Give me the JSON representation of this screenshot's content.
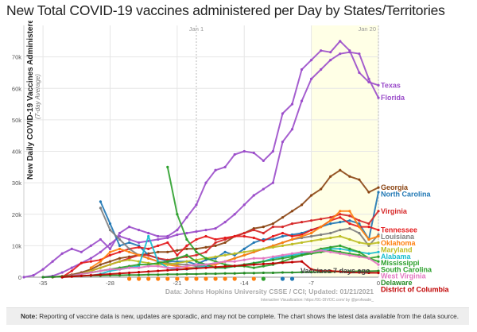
{
  "title": "New Total COVID-19 vaccines administered per Day by States/Territories",
  "note_label": "Note:",
  "note_text": "Reporting of vaccine data is new, updates are sporadic, and may not be complete. The chart shows the latest data available from the data source.",
  "chart_data": {
    "type": "line",
    "ylabel": "New Daily COVID-19 Vaccines Administered",
    "ylabel_sub": "(7-day Average)",
    "xlabel": "",
    "xlim": [
      -37,
      0
    ],
    "ylim": [
      0,
      80000
    ],
    "x_ticks": [
      "-35",
      "-28",
      "-21",
      "-14",
      "-7",
      "0"
    ],
    "y_ticks": [
      "0",
      "10k",
      "20k",
      "30k",
      "40k",
      "50k",
      "60k",
      "70k"
    ],
    "markers": [
      {
        "label": "Jan 1",
        "x": -19
      },
      {
        "label": "Jan 20",
        "x": 0
      }
    ],
    "source": "Data: Johns Hopkins University CSSE / CCI; Updated: 01/21/2021",
    "credit": "Interactive Visualization: https://91-DIVOC.com/ by @profwade_",
    "annotation": "Vaccines 7 days ago",
    "series": [
      {
        "name": "Texas",
        "color": "#9b4dca",
        "x": [
          -37,
          -36,
          -35,
          -34,
          -33,
          -32,
          -31,
          -30,
          -29,
          -28,
          -27,
          -26,
          -25,
          -24,
          -23,
          -22,
          -21,
          -20,
          -19,
          -18,
          -17,
          -16,
          -15,
          -14,
          -13,
          -12,
          -11,
          -10,
          -9,
          -8,
          -7,
          -6,
          -5,
          -4,
          -3,
          -2,
          -1,
          0
        ],
        "y": [
          0,
          600,
          2500,
          5000,
          7500,
          9000,
          8000,
          10000,
          12000,
          9000,
          14000,
          16000,
          15000,
          14000,
          13000,
          13000,
          15000,
          19000,
          23000,
          30000,
          34000,
          35000,
          39000,
          40000,
          39500,
          37000,
          40000,
          52000,
          55000,
          66000,
          69000,
          72000,
          71500,
          75000,
          72000,
          65000,
          62000,
          61000
        ]
      },
      {
        "name": "Florida",
        "color": "#9b4dca",
        "x": [
          -35,
          -34,
          -33,
          -32,
          -31,
          -30,
          -29,
          -28,
          -27,
          -26,
          -25,
          -24,
          -23,
          -22,
          -21,
          -20,
          -19,
          -18,
          -17,
          -16,
          -15,
          -14,
          -13,
          -12,
          -11,
          -10,
          -9,
          -8,
          -7,
          -6,
          -5,
          -4,
          -3,
          -2,
          -1,
          0
        ],
        "y": [
          0,
          400,
          1500,
          3000,
          4500,
          6000,
          8000,
          10500,
          13000,
          12000,
          11000,
          11500,
          12000,
          12500,
          13500,
          14000,
          14500,
          15000,
          15500,
          17500,
          20000,
          23000,
          26000,
          28000,
          30000,
          43000,
          47000,
          56000,
          63000,
          66000,
          69000,
          71000,
          71500,
          71000,
          63000,
          57000
        ]
      },
      {
        "name": "Georgia",
        "color": "#8b4513",
        "x": [
          -34,
          -33,
          -32,
          -31,
          -30,
          -29,
          -28,
          -27,
          -26,
          -25,
          -24,
          -23,
          -22,
          -21,
          -20,
          -19,
          -18,
          -17,
          -16,
          -15,
          -14,
          -13,
          -12,
          -11,
          -10,
          -9,
          -8,
          -7,
          -6,
          -5,
          -4,
          -3,
          -2,
          -1,
          0
        ],
        "y": [
          0,
          300,
          800,
          1500,
          2500,
          4000,
          5000,
          6000,
          6500,
          7000,
          7500,
          8000,
          8000,
          8500,
          9000,
          9000,
          9500,
          10000,
          11000,
          13000,
          14000,
          15500,
          16000,
          17000,
          19000,
          21000,
          23000,
          26000,
          28000,
          32000,
          34000,
          32000,
          31000,
          27000,
          28500
        ]
      },
      {
        "name": "North Carolina",
        "color": "#1f77b4",
        "x": [
          -29,
          -28,
          -27,
          -26,
          -25,
          -24,
          -23,
          -22,
          -21,
          -20,
          -19,
          -18,
          -17,
          -16,
          -15,
          -14,
          -13,
          -12,
          -11,
          -10,
          -9,
          -8,
          -7,
          -6,
          -5,
          -4,
          -3,
          -2,
          -1,
          0
        ],
        "y": [
          24000,
          17000,
          10000,
          11000,
          10000,
          7000,
          6000,
          5000,
          5000,
          5000,
          4000,
          5500,
          6000,
          8000,
          7000,
          9000,
          11000,
          12000,
          12000,
          13000,
          13500,
          14000,
          15000,
          16000,
          17000,
          17500,
          18000,
          17000,
          12000,
          27000
        ]
      },
      {
        "name": "Virginia",
        "color": "#d62728",
        "x": [
          -30,
          -29,
          -28,
          -27,
          -26,
          -25,
          -24,
          -23,
          -22,
          -21,
          -20,
          -19,
          -18,
          -17,
          -16,
          -15,
          -14,
          -13,
          -12,
          -11,
          -10,
          -9,
          -8,
          -7,
          -6,
          -5,
          -4,
          -3,
          -2,
          -1,
          0
        ],
        "y": [
          2000,
          3000,
          4000,
          5000,
          6000,
          7000,
          7000,
          6000,
          5500,
          6000,
          6500,
          7000,
          8000,
          11000,
          12000,
          13000,
          14000,
          15000,
          14000,
          16000,
          16000,
          17000,
          17500,
          18000,
          18500,
          19000,
          20000,
          19500,
          18000,
          17000,
          21000
        ]
      },
      {
        "name": "Tennessee",
        "color": "#e41a1c",
        "x": [
          -33,
          -32,
          -31,
          -30,
          -29,
          -28,
          -27,
          -26,
          -25,
          -24,
          -23,
          -22,
          -21,
          -20,
          -19,
          -18,
          -17,
          -16,
          -15,
          -14,
          -13,
          -12,
          -11,
          -10,
          -9,
          -8,
          -7,
          -6,
          -5,
          -4,
          -3,
          -2,
          -1,
          0
        ],
        "y": [
          0,
          2000,
          4500,
          5000,
          5500,
          7000,
          8000,
          9000,
          9500,
          9000,
          10000,
          11000,
          7000,
          10000,
          12000,
          13000,
          12000,
          12500,
          13000,
          13000,
          12500,
          11500,
          13000,
          14000,
          13000,
          13500,
          15000,
          16000,
          18000,
          19000,
          17000,
          16000,
          16000,
          15000
        ]
      },
      {
        "name": "Louisiana",
        "color": "#7f7f7f",
        "x": [
          -29,
          -28,
          -27,
          -26,
          -25,
          -24,
          -23,
          -22,
          -21,
          -20,
          -19,
          -18,
          -17,
          -16,
          -15,
          -14,
          -13,
          -12,
          -11,
          -10,
          -9,
          -8,
          -7,
          -6,
          -5,
          -4,
          -3,
          -2,
          -1,
          0
        ],
        "y": [
          22000,
          15000,
          12000,
          9000,
          7000,
          6000,
          5000,
          4500,
          4000,
          4000,
          3500,
          4000,
          4500,
          5000,
          6000,
          7000,
          8000,
          9000,
          10000,
          11000,
          12000,
          12500,
          13000,
          13500,
          14000,
          15000,
          15500,
          14000,
          10000,
          13500
        ]
      },
      {
        "name": "Oklahoma",
        "color": "#ff7f0e",
        "x": [
          -30,
          -29,
          -28,
          -27,
          -26,
          -25,
          -24,
          -23,
          -22,
          -21,
          -20,
          -19,
          -18,
          -17,
          -16,
          -15,
          -14,
          -13,
          -12,
          -11,
          -10,
          -9,
          -8,
          -7,
          -6,
          -5,
          -4,
          -3,
          -2,
          -1,
          0
        ],
        "y": [
          3000,
          5000,
          8000,
          9000,
          8000,
          7000,
          6000,
          5000,
          4000,
          3500,
          3000,
          3000,
          3500,
          4000,
          5000,
          6000,
          7000,
          8000,
          9000,
          10000,
          11000,
          12000,
          13000,
          14000,
          16000,
          18000,
          21000,
          21000,
          16000,
          12000,
          13000
        ]
      },
      {
        "name": "Maryland",
        "color": "#bcbd22",
        "x": [
          -31,
          -30,
          -29,
          -28,
          -27,
          -26,
          -25,
          -24,
          -23,
          -22,
          -21,
          -20,
          -19,
          -18,
          -17,
          -16,
          -15,
          -14,
          -13,
          -12,
          -11,
          -10,
          -9,
          -8,
          -7,
          -6,
          -5,
          -4,
          -3,
          -2,
          -1,
          0
        ],
        "y": [
          1000,
          2000,
          3000,
          4000,
          5000,
          5500,
          5000,
          4500,
          4000,
          4000,
          4500,
          5000,
          5500,
          6000,
          6500,
          7000,
          7500,
          8000,
          8500,
          9000,
          9500,
          10000,
          10500,
          11000,
          11500,
          12000,
          12500,
          13000,
          12000,
          11000,
          10500,
          11000
        ]
      },
      {
        "name": "Alabama",
        "color": "#17becf",
        "x": [
          -30,
          -29,
          -28,
          -27,
          -26,
          -25,
          -24,
          -23,
          -22,
          -21,
          -20,
          -19,
          -18,
          -17,
          -16,
          -15,
          -14,
          -13,
          -12,
          -11,
          -10,
          -9,
          -8,
          -7,
          -6,
          -5,
          -4,
          -3,
          -2,
          -1,
          0
        ],
        "y": [
          500,
          1000,
          2000,
          2500,
          3000,
          3500,
          13000,
          5000,
          3000,
          2500,
          2500,
          3000,
          3500,
          3000,
          3000,
          3500,
          4000,
          4500,
          5000,
          6000,
          6500,
          7000,
          7500,
          8000,
          8500,
          9000,
          9000,
          8500,
          8000,
          7500,
          8000
        ]
      },
      {
        "name": "Mississippi",
        "color": "#2ca02c",
        "x": [
          -33,
          -32,
          -31,
          -30,
          -29,
          -28,
          -27,
          -26,
          -25,
          -24,
          -23,
          -22,
          -21,
          -20,
          -19,
          -18,
          -17,
          -16,
          -15,
          -14,
          -13,
          -12,
          -11,
          -10,
          -9,
          -8,
          -7,
          -6,
          -5,
          -4,
          -3,
          -2,
          -1,
          0
        ],
        "y": [
          0,
          500,
          1000,
          1500,
          2000,
          2500,
          3000,
          3500,
          4000,
          4000,
          4500,
          5000,
          6000,
          7000,
          5000,
          4000,
          3000,
          3000,
          3500,
          4000,
          4500,
          5000,
          5500,
          6000,
          6500,
          7000,
          7500,
          8000,
          8500,
          8000,
          7500,
          7000,
          6000,
          6500
        ]
      },
      {
        "name": "South Carolina",
        "color": "#2ca02c",
        "x": [
          -22,
          -21,
          -20,
          -19,
          -18,
          -17,
          -16,
          -15,
          -14,
          -13,
          -12,
          -11,
          -10,
          -9,
          -8,
          -7,
          -6,
          -5,
          -4,
          -3,
          -2,
          -1,
          0
        ],
        "y": [
          35000,
          20000,
          12000,
          8000,
          6000,
          5000,
          4000,
          3500,
          3500,
          3000,
          3500,
          4000,
          5000,
          6000,
          7000,
          8000,
          9000,
          9500,
          10000,
          9000,
          8000,
          6000,
          5000
        ]
      },
      {
        "name": "West Virginia",
        "color": "#e377c2",
        "x": [
          -33,
          -32,
          -31,
          -30,
          -29,
          -28,
          -27,
          -26,
          -25,
          -24,
          -23,
          -22,
          -21,
          -20,
          -19,
          -18,
          -17,
          -16,
          -15,
          -14,
          -13,
          -12,
          -11,
          -10,
          -9,
          -8,
          -7,
          -6,
          -5,
          -4,
          -3,
          -2,
          -1,
          0
        ],
        "y": [
          0,
          500,
          1000,
          1500,
          2000,
          2500,
          2500,
          3000,
          3000,
          3500,
          3500,
          3000,
          3000,
          3500,
          4000,
          4000,
          4500,
          5000,
          5000,
          5500,
          6000,
          6000,
          6500,
          7000,
          7500,
          8000,
          8000,
          8500,
          8000,
          7500,
          7000,
          6500,
          6000,
          4000
        ]
      },
      {
        "name": "Delaware",
        "color": "#228b22",
        "x": [
          -35,
          -34,
          -33,
          -32,
          -31,
          -30,
          -29,
          -28,
          -27,
          -26,
          -25,
          -24,
          -23,
          -22,
          -21,
          -20,
          -19,
          -18,
          -17,
          -16,
          -15,
          -14,
          -13,
          -12,
          -11,
          -10,
          -9,
          -8,
          -7,
          -6,
          -5,
          -4,
          -3,
          -2,
          -1,
          0
        ],
        "y": [
          0,
          100,
          200,
          300,
          400,
          500,
          500,
          600,
          600,
          700,
          700,
          800,
          800,
          900,
          900,
          1000,
          1000,
          1100,
          1100,
          1200,
          1200,
          1300,
          1300,
          1400,
          1400,
          1500,
          1500,
          1600,
          1600,
          1700,
          1700,
          1800,
          1800,
          1900,
          1900,
          2000
        ]
      },
      {
        "name": "District of Columbia",
        "color": "#c00000",
        "x": [
          -33,
          -32,
          -31,
          -30,
          -29,
          -28,
          -27,
          -26,
          -25,
          -24,
          -23,
          -22,
          -21,
          -20,
          -19,
          -18,
          -17,
          -16,
          -15,
          -14,
          -13,
          -12,
          -11,
          -10,
          -9,
          -8,
          -7,
          -6,
          -5,
          -4,
          -3,
          -2,
          -1,
          0
        ],
        "y": [
          0,
          200,
          400,
          600,
          800,
          1000,
          1200,
          1400,
          1600,
          1800,
          2000,
          2200,
          2400,
          2600,
          2800,
          3000,
          3200,
          3400,
          3600,
          3800,
          4000,
          4200,
          4400,
          4600,
          4800,
          5000,
          2500,
          2000,
          2000,
          1800,
          1500,
          1500,
          1400,
          1400
        ]
      }
    ],
    "dots": [
      {
        "color": "#ff7f0e",
        "x": [
          -26,
          -25,
          -24,
          -23,
          -22,
          -21,
          -20,
          -19,
          -18,
          -17,
          -16,
          -15,
          -13
        ]
      },
      {
        "color": "#2ca02c",
        "x": [
          -12
        ]
      },
      {
        "color": "#1f77b4",
        "x": [
          -10,
          -9
        ]
      }
    ]
  }
}
